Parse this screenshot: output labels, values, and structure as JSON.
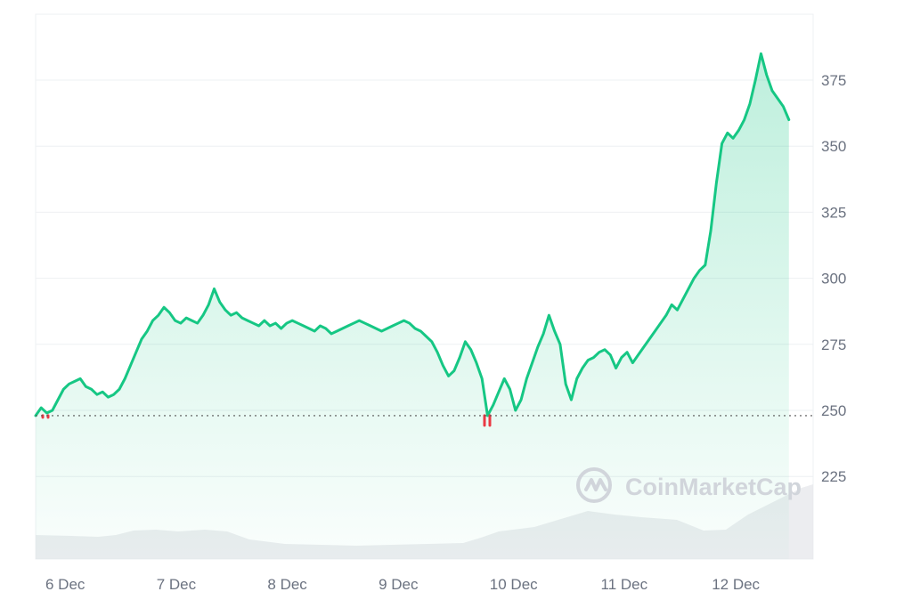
{
  "chart_data": {
    "type": "area",
    "title": "",
    "xlabel": "",
    "ylabel": "",
    "x_tick_labels": [
      "6 Dec",
      "7 Dec",
      "8 Dec",
      "9 Dec",
      "10 Dec",
      "11 Dec",
      "12 Dec"
    ],
    "y_ticks": [
      225,
      250,
      275,
      300,
      325,
      350,
      375
    ],
    "ylim": [
      205,
      395
    ],
    "baseline": 248,
    "grid": true,
    "legend": "none",
    "colors": {
      "up": "#16c784",
      "down": "#ea3943",
      "volume": "#e5e7eb",
      "grid": "#eef0f3",
      "axis_text": "#6b7280",
      "watermark": "#d1d5db"
    },
    "series": [
      {
        "x": [
          0,
          0.05,
          0.1,
          0.15,
          0.2,
          0.25,
          0.3,
          0.35,
          0.4,
          0.45,
          0.5,
          0.55,
          0.6,
          0.65,
          0.7,
          0.75,
          0.8,
          0.85,
          0.9,
          0.95,
          1.0,
          1.05,
          1.1,
          1.15,
          1.2,
          1.25,
          1.3,
          1.35,
          1.4,
          1.45,
          1.5,
          1.55,
          1.6,
          1.65,
          1.7,
          1.75,
          1.8,
          1.85,
          1.9,
          1.95,
          2.0,
          2.05,
          2.1,
          2.15,
          2.2,
          2.25,
          2.3,
          2.35,
          2.4,
          2.45,
          2.5,
          2.55,
          2.6,
          2.65,
          2.7,
          2.75,
          2.8,
          2.85,
          2.9,
          2.95,
          3.0,
          3.05,
          3.1,
          3.15,
          3.2,
          3.25,
          3.3,
          3.35,
          3.4,
          3.45,
          3.5,
          3.55,
          3.6,
          3.65,
          3.7,
          3.75,
          3.8,
          3.85,
          3.9,
          3.95,
          4.0,
          4.05,
          4.1,
          4.15,
          4.2,
          4.25,
          4.3,
          4.35,
          4.4,
          4.45,
          4.5,
          4.55,
          4.6,
          4.65,
          4.7,
          4.75,
          4.8,
          4.85,
          4.9,
          4.95,
          5.0,
          5.05,
          5.1,
          5.15,
          5.2,
          5.25,
          5.3,
          5.35,
          5.4,
          5.45,
          5.5,
          5.55,
          5.6,
          5.65,
          5.7,
          5.75,
          5.8,
          5.85,
          5.9,
          5.95,
          6.0,
          6.05,
          6.1,
          6.15,
          6.2,
          6.25,
          6.3,
          6.35,
          6.4,
          6.45,
          6.5,
          6.55,
          6.6,
          6.65,
          6.7,
          6.75
        ],
        "values": [
          248,
          251,
          249,
          250,
          254,
          258,
          260,
          261,
          262,
          259,
          258,
          256,
          257,
          255,
          256,
          258,
          262,
          267,
          272,
          277,
          280,
          284,
          286,
          289,
          287,
          284,
          283,
          285,
          284,
          283,
          286,
          290,
          296,
          291,
          288,
          286,
          287,
          285,
          284,
          283,
          282,
          284,
          282,
          283,
          281,
          283,
          284,
          283,
          282,
          281,
          280,
          282,
          281,
          279,
          280,
          281,
          282,
          283,
          284,
          283,
          282,
          281,
          280,
          281,
          282,
          283,
          284,
          283,
          281,
          280,
          278,
          276,
          272,
          267,
          263,
          265,
          270,
          276,
          273,
          268,
          262,
          248,
          252,
          257,
          262,
          258,
          250,
          254,
          262,
          268,
          274,
          279,
          286,
          280,
          275,
          260,
          254,
          262,
          266,
          269,
          270,
          272,
          273,
          271,
          266,
          270,
          272,
          268,
          271,
          274,
          277,
          280,
          283,
          286,
          290,
          288,
          292,
          296,
          300,
          303,
          305,
          318,
          336,
          351,
          355,
          353,
          356,
          360,
          366,
          375,
          385,
          377,
          371,
          368,
          365,
          360
        ]
      }
    ]
  },
  "watermark": {
    "text": "CoinMarketCap"
  }
}
